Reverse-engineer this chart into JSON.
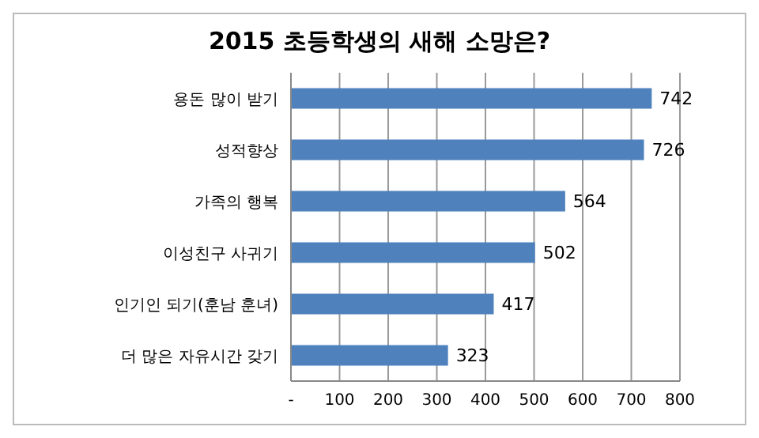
{
  "chart_data": {
    "type": "bar",
    "orientation": "horizontal",
    "title": "2015 초등학생의 새해 소망은?",
    "categories": [
      "용돈 많이 받기",
      "성적향상",
      "가족의 행복",
      "이성친구 사귀기",
      "인기인 되기(훈남 훈녀)",
      "더 많은 자유시간 갖기"
    ],
    "values": [
      742,
      726,
      564,
      502,
      417,
      323
    ],
    "color": "#4f81bd",
    "xlim": [
      0,
      800
    ],
    "xticks": [
      {
        "value": 0,
        "label": "-"
      },
      100,
      200,
      300,
      400,
      500,
      600,
      700,
      800
    ],
    "grid": "x",
    "data_labels": true
  }
}
